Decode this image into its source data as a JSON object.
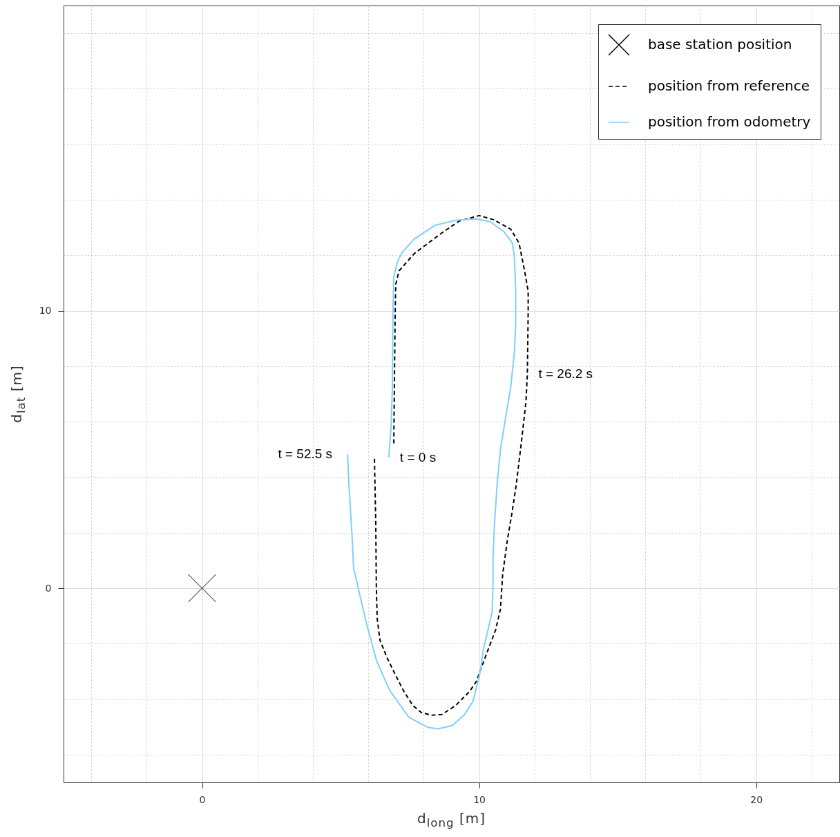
{
  "chart_data": {
    "type": "line",
    "xlabel": "d$_{long}$ [m]",
    "ylabel": "d$_{lat}$ [m]",
    "xlim": [
      -5,
      23
    ],
    "ylim": [
      -7,
      21
    ],
    "xticks": [
      {
        "value": -4,
        "label": null
      },
      {
        "value": -2,
        "label": null
      },
      0,
      {
        "value": 2,
        "label": null
      },
      {
        "value": 4,
        "label": null
      },
      {
        "value": 6,
        "label": null
      },
      {
        "value": 8,
        "label": null
      },
      10,
      {
        "value": 12,
        "label": null
      },
      {
        "value": 14,
        "label": null
      },
      {
        "value": 16,
        "label": null
      },
      {
        "value": 18,
        "label": null
      },
      20,
      {
        "value": 22,
        "label": null
      }
    ],
    "yticks": [
      {
        "value": -6,
        "label": null
      },
      {
        "value": -4,
        "label": null
      },
      {
        "value": -2,
        "label": null
      },
      0,
      {
        "value": 2,
        "label": null
      },
      {
        "value": 4,
        "label": null
      },
      {
        "value": 6,
        "label": null
      },
      {
        "value": 8,
        "label": null
      },
      10,
      {
        "value": 12,
        "label": null
      },
      {
        "value": 14,
        "label": null
      },
      {
        "value": 16,
        "label": null
      },
      {
        "value": 18,
        "label": null
      },
      {
        "value": 20,
        "label": null
      }
    ],
    "grid": true,
    "legend": "top right",
    "series": [
      {
        "name": "base station position",
        "type": "scatter",
        "marker": "cross",
        "color": "#000000",
        "x": [
          0
        ],
        "values": [
          0
        ]
      },
      {
        "name": "position from reference",
        "line_style": "dashed",
        "color": "#000000",
        "x": [
          6.92,
          6.94,
          6.97,
          6.99,
          7.11,
          7.66,
          8.66,
          9.28,
          10.0,
          10.52,
          11.14,
          11.44,
          11.64,
          11.77,
          11.77,
          11.74,
          11.69,
          11.52,
          11.34,
          11.19,
          11.02,
          10.85,
          10.77,
          10.6,
          10.22,
          9.9,
          9.65,
          9.15,
          8.66,
          8.28,
          7.91,
          7.61,
          7.29,
          6.97,
          6.67,
          6.42,
          6.32,
          6.29,
          6.27,
          6.24,
          6.22
        ],
        "values": [
          5.22,
          7.21,
          9.95,
          10.95,
          11.44,
          12.06,
          12.81,
          13.23,
          13.43,
          13.28,
          12.94,
          12.44,
          11.44,
          10.7,
          9.95,
          7.71,
          6.72,
          5.22,
          3.73,
          2.74,
          1.74,
          0.5,
          -0.75,
          -1.49,
          -2.49,
          -3.36,
          -3.73,
          -4.23,
          -4.55,
          -4.58,
          -4.48,
          -4.23,
          -3.73,
          -3.11,
          -2.49,
          -1.87,
          -1.09,
          0.02,
          2.26,
          3.76,
          4.75
        ]
      },
      {
        "name": "position from odometry",
        "line_style": "solid",
        "color": "#7fcfff",
        "x": [
          6.74,
          6.82,
          6.87,
          6.89,
          6.92,
          7.04,
          7.21,
          7.66,
          8.41,
          9.15,
          9.9,
          10.4,
          10.9,
          11.19,
          11.27,
          11.32,
          11.32,
          11.27,
          11.14,
          10.97,
          10.77,
          10.65,
          10.55,
          10.5,
          10.5,
          10.47,
          10.27,
          10.15,
          10.05,
          9.93,
          9.78,
          9.45,
          9.03,
          8.53,
          8.16,
          7.46,
          6.79,
          6.67,
          6.29,
          5.92,
          5.47,
          5.42,
          5.3,
          5.25
        ],
        "values": [
          4.72,
          5.77,
          7.26,
          9.98,
          11.22,
          11.72,
          12.09,
          12.59,
          13.08,
          13.26,
          13.31,
          13.21,
          12.84,
          12.46,
          11.97,
          10.72,
          9.48,
          8.48,
          7.24,
          6.24,
          5.0,
          3.76,
          2.26,
          1.02,
          0.15,
          -0.85,
          -1.72,
          -2.21,
          -2.96,
          -3.46,
          -4.08,
          -4.58,
          -4.95,
          -5.07,
          -5.02,
          -4.65,
          -3.71,
          -3.46,
          -2.59,
          -1.22,
          0.72,
          1.77,
          3.76,
          4.83
        ]
      }
    ],
    "annotations": [
      {
        "text": "t = 52.5 s",
        "x": 5.25,
        "y": 4.83
      },
      {
        "text": "t = 0 s",
        "x": 6.74,
        "y": 4.72
      },
      {
        "text": "t = 26.2 s",
        "x": 11.74,
        "y": 7.71
      }
    ]
  }
}
